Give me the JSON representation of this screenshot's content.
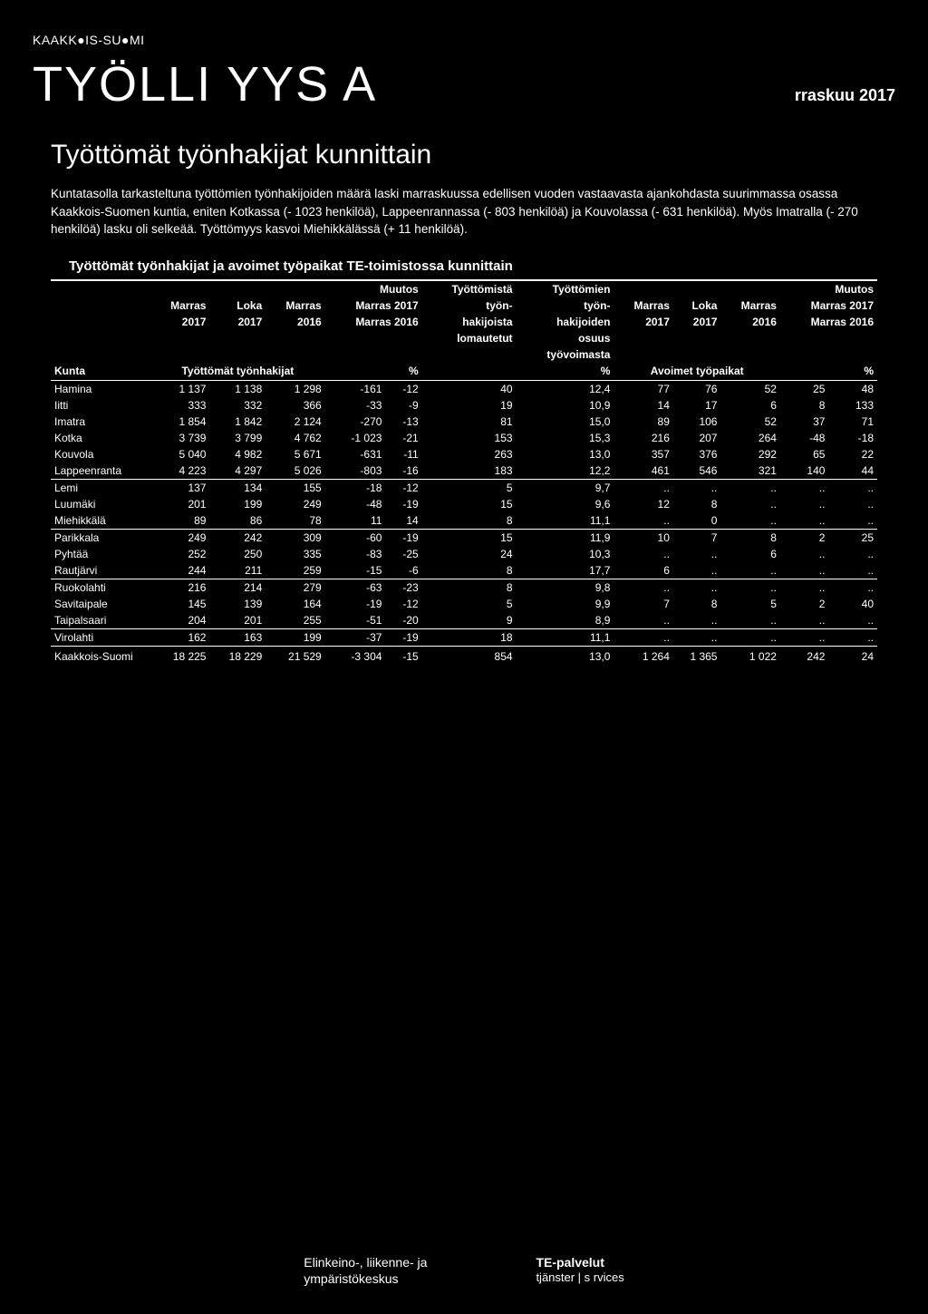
{
  "region": "KAAKK●IS-SU●MI",
  "main_title": "TYÖLLI  YYS  A",
  "date": "rraskuu 2017",
  "sub_title": "Työttömät työnhakijat kunnittain",
  "intro": "Kuntatasolla tarkasteltuna työttömien työnhakijoiden määrä laski marraskuussa edellisen vuoden vastaavasta ajankohdasta suurimmassa osassa Kaakkois-Suomen kuntia, eniten Kotkassa (- 1023 henkilöä), Lappeenrannassa (- 803 henkilöä) ja Kouvolassa (- 631 henkilöä). Myös Imatralla (- 270 henkilöä) lasku oli selkeää. Työttömyys kasvoi Miehikkälässä (+ 11 henkilöä).",
  "table_title": "Työttömät työnhakijat ja avoimet työpaikat TE-toimistossa kunnittain",
  "header": {
    "r1": {
      "c4": "Muutos",
      "c5": "Työttömistä",
      "c6": "Työttömien",
      "c10": "Muutos"
    },
    "r2": {
      "c1": "Marras",
      "c2": "Loka",
      "c3": "Marras",
      "c4": "Marras 2017",
      "c5": "työn-",
      "c6": "työn-",
      "c7": "Marras",
      "c8": "Loka",
      "c9": "Marras",
      "c10": "Marras 2017"
    },
    "r3": {
      "c1": "2017",
      "c2": "2017",
      "c3": "2016",
      "c4": "Marras 2016",
      "c5": "hakijoista",
      "c6": "hakijoiden",
      "c7": "2017",
      "c8": "2017",
      "c9": "2016",
      "c10": "Marras 2016"
    },
    "r4": {
      "c5": "lomautetut",
      "c6": "osuus"
    },
    "r5": {
      "c6": "työvoimasta"
    },
    "r6": {
      "c0": "Kunta",
      "c2": "Työttömät työnhakijat",
      "c4b": "%",
      "c6": "%",
      "c8": "Avoimet työpaikat",
      "c10b": "%"
    }
  },
  "rows": [
    {
      "k": "Hamina",
      "v": [
        "1 137",
        "1 138",
        "1 298",
        "-161",
        "-12",
        "40",
        "12,4",
        "77",
        "76",
        "52",
        "25",
        "48"
      ]
    },
    {
      "k": "Iitti",
      "v": [
        "333",
        "332",
        "366",
        "-33",
        "-9",
        "19",
        "10,9",
        "14",
        "17",
        "6",
        "8",
        "133"
      ]
    },
    {
      "k": "Imatra",
      "v": [
        "1 854",
        "1 842",
        "2 124",
        "-270",
        "-13",
        "81",
        "15,0",
        "89",
        "106",
        "52",
        "37",
        "71"
      ]
    },
    {
      "k": "Kotka",
      "v": [
        "3 739",
        "3 799",
        "4 762",
        "-1 023",
        "-21",
        "153",
        "15,3",
        "216",
        "207",
        "264",
        "-48",
        "-18"
      ]
    },
    {
      "k": "Kouvola",
      "v": [
        "5 040",
        "4 982",
        "5 671",
        "-631",
        "-11",
        "263",
        "13,0",
        "357",
        "376",
        "292",
        "65",
        "22"
      ]
    },
    {
      "k": "Lappeenranta",
      "v": [
        "4 223",
        "4 297",
        "5 026",
        "-803",
        "-16",
        "183",
        "12,2",
        "461",
        "546",
        "321",
        "140",
        "44"
      ],
      "sep": true
    },
    {
      "k": "Lemi",
      "v": [
        "137",
        "134",
        "155",
        "-18",
        "-12",
        "5",
        "9,7",
        "..",
        "..",
        "..",
        "..",
        ".."
      ]
    },
    {
      "k": "Luumäki",
      "v": [
        "201",
        "199",
        "249",
        "-48",
        "-19",
        "15",
        "9,6",
        "12",
        "8",
        "..",
        "..",
        ".."
      ]
    },
    {
      "k": "Miehikkälä",
      "v": [
        "89",
        "86",
        "78",
        "11",
        "14",
        "8",
        "11,1",
        "..",
        "0",
        "..",
        "..",
        ".."
      ],
      "sep": true
    },
    {
      "k": "Parikkala",
      "v": [
        "249",
        "242",
        "309",
        "-60",
        "-19",
        "15",
        "11,9",
        "10",
        "7",
        "8",
        "2",
        "25"
      ]
    },
    {
      "k": "Pyhtää",
      "v": [
        "252",
        "250",
        "335",
        "-83",
        "-25",
        "24",
        "10,3",
        "..",
        "..",
        "6",
        "..",
        ".."
      ]
    },
    {
      "k": "Rautjärvi",
      "v": [
        "244",
        "211",
        "259",
        "-15",
        "-6",
        "8",
        "17,7",
        "6",
        "..",
        "..",
        "..",
        ".."
      ],
      "sep": true
    },
    {
      "k": "Ruokolahti",
      "v": [
        "216",
        "214",
        "279",
        "-63",
        "-23",
        "8",
        "9,8",
        "..",
        "..",
        "..",
        "..",
        ".."
      ]
    },
    {
      "k": "Savitaipale",
      "v": [
        "145",
        "139",
        "164",
        "-19",
        "-12",
        "5",
        "9,9",
        "7",
        "8",
        "5",
        "2",
        "40"
      ]
    },
    {
      "k": "Taipalsaari",
      "v": [
        "204",
        "201",
        "255",
        "-51",
        "-20",
        "9",
        "8,9",
        "..",
        "..",
        "..",
        "..",
        ".."
      ],
      "sep": true
    },
    {
      "k": "Virolahti",
      "v": [
        "162",
        "163",
        "199",
        "-37",
        "-19",
        "18",
        "11,1",
        "..",
        "..",
        "..",
        "..",
        ".."
      ],
      "sep": true
    }
  ],
  "total": {
    "k": "Kaakkois-Suomi",
    "v": [
      "18 225",
      "18 229",
      "21 529",
      "-3 304",
      "-15",
      "854",
      "13,0",
      "1 264",
      "1 365",
      "1 022",
      "242",
      "24"
    ]
  },
  "footer": {
    "left1": "Elinkeino-, liikenne- ja",
    "left2": "ympäristökeskus",
    "right1": "TE-palvelut",
    "right2": "tjänster | s  rvices"
  },
  "colors": {
    "bg": "#000000",
    "fg": "#ffffff"
  }
}
